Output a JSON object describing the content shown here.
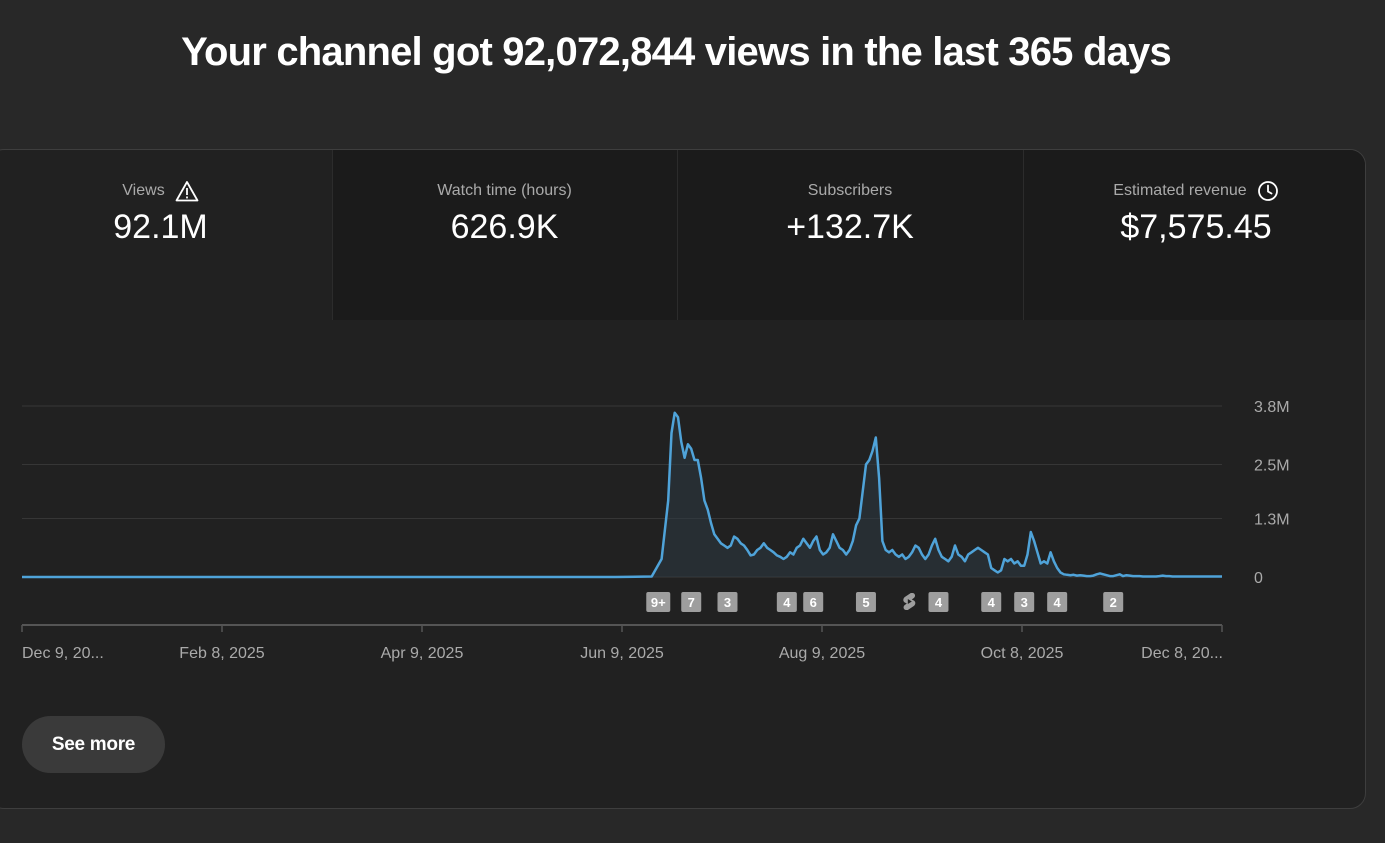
{
  "headline": "Your channel got 92,072,844 views in the last 365 days",
  "metrics": [
    {
      "label": "Views",
      "value": "92.1M",
      "icon": "warning-icon"
    },
    {
      "label": "Watch time (hours)",
      "value": "626.9K"
    },
    {
      "label": "Subscribers",
      "value": "+132.7K"
    },
    {
      "label": "Estimated revenue",
      "value": "$7,575.45",
      "icon": "clock-icon"
    }
  ],
  "chart_data": {
    "type": "area",
    "title": "Views",
    "xlabel": "",
    "ylabel": "",
    "x_tick_labels": [
      "Dec 9, 20...",
      "Feb 8, 2025",
      "Apr 9, 2025",
      "Jun 9, 2025",
      "Aug 9, 2025",
      "Oct 8, 2025",
      "Dec 8, 20..."
    ],
    "y_tick_labels": [
      "0",
      "1.3M",
      "2.5M",
      "3.8M"
    ],
    "y_tick_values": [
      0,
      1300000,
      2500000,
      3800000
    ],
    "ylim": [
      0,
      3800000
    ],
    "xlim": [
      0,
      364
    ],
    "series": [
      {
        "name": "Views",
        "color": "#4fa3d9",
        "points": [
          [
            0,
            0
          ],
          [
            180,
            0
          ],
          [
            191,
            10000
          ],
          [
            194,
            400000
          ],
          [
            196,
            1700000
          ],
          [
            197,
            3200000
          ],
          [
            198,
            3650000
          ],
          [
            199,
            3550000
          ],
          [
            200,
            3000000
          ],
          [
            201,
            2650000
          ],
          [
            202,
            2950000
          ],
          [
            203,
            2850000
          ],
          [
            204,
            2600000
          ],
          [
            205,
            2600000
          ],
          [
            206,
            2200000
          ],
          [
            207,
            1700000
          ],
          [
            208,
            1500000
          ],
          [
            209,
            1200000
          ],
          [
            210,
            950000
          ],
          [
            211,
            850000
          ],
          [
            212,
            750000
          ],
          [
            213,
            700000
          ],
          [
            214,
            650000
          ],
          [
            215,
            700000
          ],
          [
            216,
            900000
          ],
          [
            217,
            850000
          ],
          [
            218,
            750000
          ],
          [
            219,
            700000
          ],
          [
            220,
            600000
          ],
          [
            221,
            480000
          ],
          [
            222,
            500000
          ],
          [
            223,
            600000
          ],
          [
            224,
            650000
          ],
          [
            225,
            750000
          ],
          [
            226,
            650000
          ],
          [
            227,
            600000
          ],
          [
            228,
            550000
          ],
          [
            229,
            480000
          ],
          [
            230,
            450000
          ],
          [
            231,
            400000
          ],
          [
            232,
            450000
          ],
          [
            233,
            550000
          ],
          [
            234,
            500000
          ],
          [
            235,
            650000
          ],
          [
            236,
            700000
          ],
          [
            237,
            850000
          ],
          [
            238,
            750000
          ],
          [
            239,
            650000
          ],
          [
            240,
            800000
          ],
          [
            241,
            900000
          ],
          [
            242,
            600000
          ],
          [
            243,
            500000
          ],
          [
            244,
            550000
          ],
          [
            245,
            650000
          ],
          [
            246,
            950000
          ],
          [
            247,
            800000
          ],
          [
            248,
            650000
          ],
          [
            249,
            600000
          ],
          [
            250,
            500000
          ],
          [
            251,
            600000
          ],
          [
            252,
            800000
          ],
          [
            253,
            1150000
          ],
          [
            254,
            1300000
          ],
          [
            255,
            1900000
          ],
          [
            256,
            2500000
          ],
          [
            257,
            2600000
          ],
          [
            258,
            2800000
          ],
          [
            259,
            3100000
          ],
          [
            260,
            2200000
          ],
          [
            261,
            800000
          ],
          [
            262,
            600000
          ],
          [
            263,
            550000
          ],
          [
            264,
            600000
          ],
          [
            265,
            500000
          ],
          [
            266,
            450000
          ],
          [
            267,
            500000
          ],
          [
            268,
            400000
          ],
          [
            269,
            450000
          ],
          [
            270,
            550000
          ],
          [
            271,
            700000
          ],
          [
            272,
            650000
          ],
          [
            273,
            500000
          ],
          [
            274,
            400000
          ],
          [
            275,
            500000
          ],
          [
            276,
            700000
          ],
          [
            277,
            850000
          ],
          [
            278,
            600000
          ],
          [
            279,
            450000
          ],
          [
            280,
            400000
          ],
          [
            281,
            350000
          ],
          [
            282,
            450000
          ],
          [
            283,
            700000
          ],
          [
            284,
            500000
          ],
          [
            285,
            450000
          ],
          [
            286,
            350000
          ],
          [
            287,
            500000
          ],
          [
            288,
            550000
          ],
          [
            289,
            600000
          ],
          [
            290,
            650000
          ],
          [
            291,
            600000
          ],
          [
            292,
            550000
          ],
          [
            293,
            500000
          ],
          [
            294,
            200000
          ],
          [
            295,
            150000
          ],
          [
            296,
            100000
          ],
          [
            297,
            150000
          ],
          [
            298,
            400000
          ],
          [
            299,
            350000
          ],
          [
            300,
            400000
          ],
          [
            301,
            300000
          ],
          [
            302,
            350000
          ],
          [
            303,
            250000
          ],
          [
            304,
            250000
          ],
          [
            305,
            500000
          ],
          [
            306,
            1000000
          ],
          [
            307,
            800000
          ],
          [
            308,
            550000
          ],
          [
            309,
            300000
          ],
          [
            310,
            350000
          ],
          [
            311,
            300000
          ],
          [
            312,
            550000
          ],
          [
            313,
            350000
          ],
          [
            314,
            200000
          ],
          [
            315,
            100000
          ],
          [
            316,
            60000
          ],
          [
            317,
            50000
          ],
          [
            318,
            40000
          ],
          [
            319,
            50000
          ],
          [
            320,
            30000
          ],
          [
            321,
            40000
          ],
          [
            322,
            30000
          ],
          [
            323,
            20000
          ],
          [
            324,
            20000
          ],
          [
            325,
            30000
          ],
          [
            326,
            60000
          ],
          [
            327,
            80000
          ],
          [
            328,
            60000
          ],
          [
            329,
            40000
          ],
          [
            330,
            20000
          ],
          [
            331,
            20000
          ],
          [
            332,
            40000
          ],
          [
            333,
            60000
          ],
          [
            334,
            20000
          ],
          [
            335,
            40000
          ],
          [
            336,
            30000
          ],
          [
            337,
            20000
          ],
          [
            338,
            20000
          ],
          [
            339,
            20000
          ],
          [
            340,
            10000
          ],
          [
            341,
            10000
          ],
          [
            342,
            10000
          ],
          [
            343,
            10000
          ],
          [
            344,
            10000
          ],
          [
            345,
            20000
          ],
          [
            346,
            30000
          ],
          [
            347,
            20000
          ],
          [
            348,
            20000
          ],
          [
            349,
            10000
          ],
          [
            350,
            10000
          ],
          [
            351,
            10000
          ],
          [
            352,
            10000
          ],
          [
            353,
            10000
          ],
          [
            354,
            10000
          ],
          [
            355,
            10000
          ],
          [
            356,
            10000
          ],
          [
            357,
            10000
          ],
          [
            358,
            10000
          ],
          [
            359,
            10000
          ],
          [
            360,
            10000
          ],
          [
            361,
            10000
          ],
          [
            362,
            10000
          ],
          [
            363,
            10000
          ],
          [
            364,
            10000
          ]
        ]
      }
    ],
    "annotations": [
      {
        "day": 193,
        "label": "9+"
      },
      {
        "day": 203,
        "label": "7"
      },
      {
        "day": 214,
        "label": "3"
      },
      {
        "day": 232,
        "label": "4"
      },
      {
        "day": 240,
        "label": "6"
      },
      {
        "day": 256,
        "label": "5"
      },
      {
        "day": 269,
        "label": "",
        "icon": "shorts-icon"
      },
      {
        "day": 278,
        "label": "4"
      },
      {
        "day": 294,
        "label": "4"
      },
      {
        "day": 304,
        "label": "3"
      },
      {
        "day": 314,
        "label": "4"
      },
      {
        "day": 331,
        "label": "2"
      }
    ],
    "grid": true,
    "legend": "none"
  },
  "see_more_label": "See more",
  "colors": {
    "background": "#282828",
    "card": "#212121",
    "line": "#4fa3d9",
    "badge": "#9e9e9e"
  }
}
